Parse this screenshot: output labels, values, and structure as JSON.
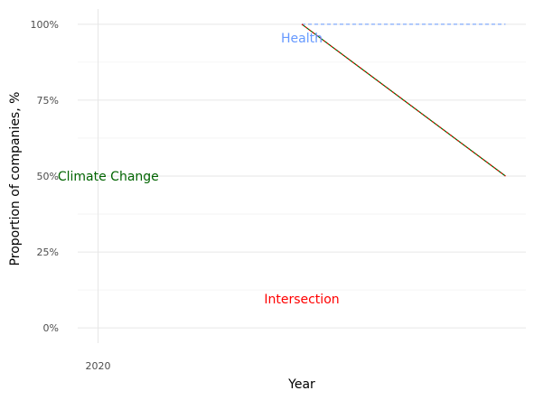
{
  "chart_data": {
    "type": "line",
    "xlabel": "Year",
    "ylabel": "Proportion of companies, %",
    "x_ticks": [
      "2020"
    ],
    "y_ticks": [
      "0%",
      "25%",
      "50%",
      "75%",
      "100%"
    ],
    "xlim": [
      2019.9,
      2022.1
    ],
    "ylim": [
      -0.05,
      1.05
    ],
    "grid": true,
    "series": [
      {
        "name": "Health",
        "color": "#6699ff",
        "style": "dashed",
        "x": [
          2021,
          2022
        ],
        "y": [
          1.0,
          1.0
        ]
      },
      {
        "name": "Climate Change",
        "color": "#006400",
        "style": "solid",
        "x": [
          2021,
          2022
        ],
        "y": [
          1.0,
          0.5
        ]
      },
      {
        "name": "Intersection",
        "color": "#ff0000",
        "style": "dotted",
        "x": [
          2021,
          2022
        ],
        "y": [
          1.0,
          0.5
        ]
      }
    ],
    "annotations": [
      {
        "text": "Health",
        "x": 2021,
        "y": 0.955,
        "color": "#6699ff"
      },
      {
        "text": "Climate Change",
        "x": 2020.05,
        "y": 0.5,
        "color": "#006400"
      },
      {
        "text": "Intersection",
        "x": 2021,
        "y": 0.095,
        "color": "#ff0000"
      }
    ]
  }
}
